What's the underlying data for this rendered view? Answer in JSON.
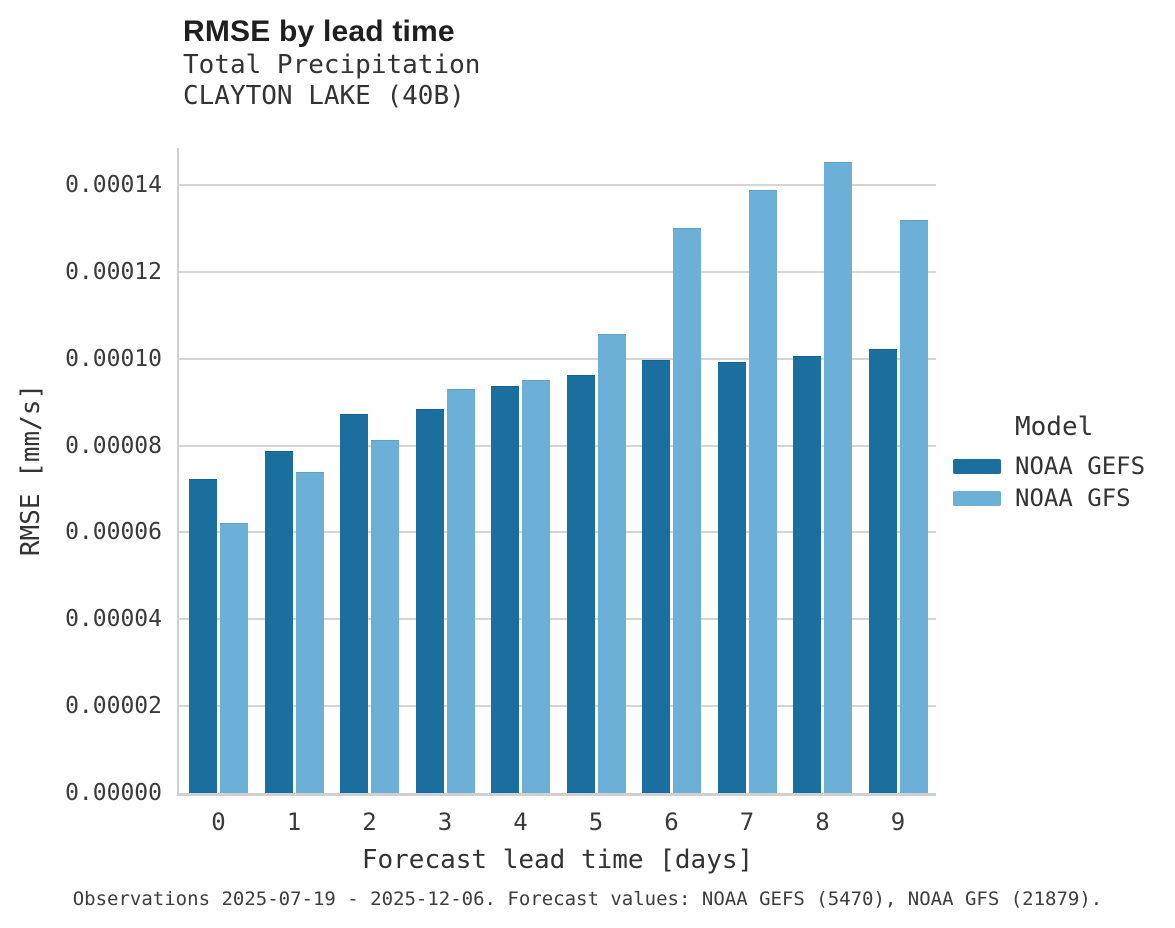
{
  "header": {
    "title": "RMSE by lead time",
    "subtitle_variable": "Total Precipitation",
    "subtitle_station": "CLAYTON LAKE (40B)"
  },
  "footnote": "Observations 2025-07-19 - 2025-12-06. Forecast values: NOAA GEFS (5470), NOAA GFS (21879).",
  "chart_data": {
    "type": "bar",
    "title": "RMSE by lead time",
    "subtitle": [
      "Total Precipitation",
      "CLAYTON LAKE (40B)"
    ],
    "xlabel": "Forecast lead time [days]",
    "ylabel": "RMSE [mm/s]",
    "categories": [
      "0",
      "1",
      "2",
      "3",
      "4",
      "5",
      "6",
      "7",
      "8",
      "9"
    ],
    "series": [
      {
        "name": "NOAA GEFS",
        "color": "#1b6f9e",
        "values": [
          7.22e-05,
          7.85e-05,
          8.71e-05,
          8.82e-05,
          9.34e-05,
          9.61e-05,
          9.96e-05,
          9.91e-05,
          0.0001004,
          0.000102
        ]
      },
      {
        "name": "NOAA GFS",
        "color": "#6cb0d8",
        "values": [
          6.2e-05,
          7.38e-05,
          8.1e-05,
          9.29e-05,
          9.49e-05,
          0.0001054,
          0.0001299,
          0.0001387,
          0.0001452,
          0.0001317
        ]
      }
    ],
    "ylim": [
      0,
      0.00014855
    ],
    "yticks": [
      0,
      2e-05,
      4e-05,
      6e-05,
      8e-05,
      0.0001,
      0.00012,
      0.00014
    ],
    "ytick_labels": [
      "0.00000",
      "0.00002",
      "0.00004",
      "0.00006",
      "0.00008",
      "0.00010",
      "0.00012",
      "0.00014"
    ],
    "grid": "horizontal",
    "legend_title": "Model",
    "legend_position": "right"
  },
  "colors": {
    "gridline": "#d5d5d5",
    "spine": "#d0d0d0",
    "noaa_gefs": "#1b6f9e",
    "noaa_gfs": "#6cb0d8"
  }
}
